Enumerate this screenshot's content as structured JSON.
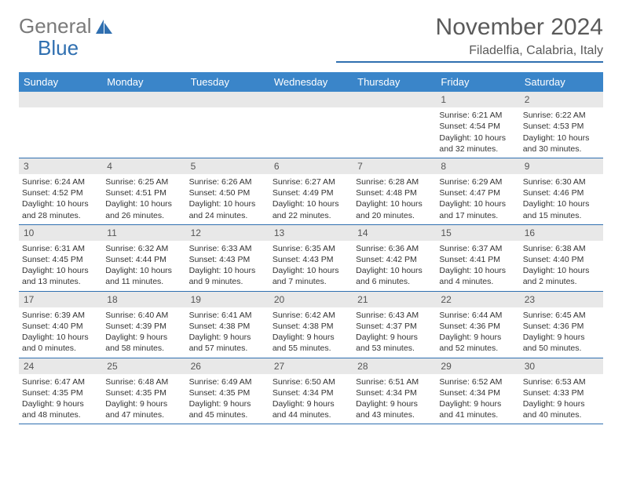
{
  "brand": {
    "word1": "General",
    "word2": "Blue"
  },
  "title": "November 2024",
  "location": "Filadelfia, Calabria, Italy",
  "colors": {
    "header_bg": "#3a85c9",
    "rule": "#2f6fb0",
    "daynum_bg": "#e8e8e8",
    "text": "#333333",
    "muted": "#5a5a5a"
  },
  "font": {
    "family": "Arial",
    "body_size_pt": 8,
    "title_size_pt": 22,
    "location_size_pt": 12,
    "header_size_pt": 10
  },
  "layout": {
    "cols": 7,
    "rows": 5,
    "leading_blanks": 5
  },
  "day_names": [
    "Sunday",
    "Monday",
    "Tuesday",
    "Wednesday",
    "Thursday",
    "Friday",
    "Saturday"
  ],
  "days": [
    {
      "n": 1,
      "sunrise": "6:21 AM",
      "sunset": "4:54 PM",
      "daylight": "10 hours and 32 minutes."
    },
    {
      "n": 2,
      "sunrise": "6:22 AM",
      "sunset": "4:53 PM",
      "daylight": "10 hours and 30 minutes."
    },
    {
      "n": 3,
      "sunrise": "6:24 AM",
      "sunset": "4:52 PM",
      "daylight": "10 hours and 28 minutes."
    },
    {
      "n": 4,
      "sunrise": "6:25 AM",
      "sunset": "4:51 PM",
      "daylight": "10 hours and 26 minutes."
    },
    {
      "n": 5,
      "sunrise": "6:26 AM",
      "sunset": "4:50 PM",
      "daylight": "10 hours and 24 minutes."
    },
    {
      "n": 6,
      "sunrise": "6:27 AM",
      "sunset": "4:49 PM",
      "daylight": "10 hours and 22 minutes."
    },
    {
      "n": 7,
      "sunrise": "6:28 AM",
      "sunset": "4:48 PM",
      "daylight": "10 hours and 20 minutes."
    },
    {
      "n": 8,
      "sunrise": "6:29 AM",
      "sunset": "4:47 PM",
      "daylight": "10 hours and 17 minutes."
    },
    {
      "n": 9,
      "sunrise": "6:30 AM",
      "sunset": "4:46 PM",
      "daylight": "10 hours and 15 minutes."
    },
    {
      "n": 10,
      "sunrise": "6:31 AM",
      "sunset": "4:45 PM",
      "daylight": "10 hours and 13 minutes."
    },
    {
      "n": 11,
      "sunrise": "6:32 AM",
      "sunset": "4:44 PM",
      "daylight": "10 hours and 11 minutes."
    },
    {
      "n": 12,
      "sunrise": "6:33 AM",
      "sunset": "4:43 PM",
      "daylight": "10 hours and 9 minutes."
    },
    {
      "n": 13,
      "sunrise": "6:35 AM",
      "sunset": "4:43 PM",
      "daylight": "10 hours and 7 minutes."
    },
    {
      "n": 14,
      "sunrise": "6:36 AM",
      "sunset": "4:42 PM",
      "daylight": "10 hours and 6 minutes."
    },
    {
      "n": 15,
      "sunrise": "6:37 AM",
      "sunset": "4:41 PM",
      "daylight": "10 hours and 4 minutes."
    },
    {
      "n": 16,
      "sunrise": "6:38 AM",
      "sunset": "4:40 PM",
      "daylight": "10 hours and 2 minutes."
    },
    {
      "n": 17,
      "sunrise": "6:39 AM",
      "sunset": "4:40 PM",
      "daylight": "10 hours and 0 minutes."
    },
    {
      "n": 18,
      "sunrise": "6:40 AM",
      "sunset": "4:39 PM",
      "daylight": "9 hours and 58 minutes."
    },
    {
      "n": 19,
      "sunrise": "6:41 AM",
      "sunset": "4:38 PM",
      "daylight": "9 hours and 57 minutes."
    },
    {
      "n": 20,
      "sunrise": "6:42 AM",
      "sunset": "4:38 PM",
      "daylight": "9 hours and 55 minutes."
    },
    {
      "n": 21,
      "sunrise": "6:43 AM",
      "sunset": "4:37 PM",
      "daylight": "9 hours and 53 minutes."
    },
    {
      "n": 22,
      "sunrise": "6:44 AM",
      "sunset": "4:36 PM",
      "daylight": "9 hours and 52 minutes."
    },
    {
      "n": 23,
      "sunrise": "6:45 AM",
      "sunset": "4:36 PM",
      "daylight": "9 hours and 50 minutes."
    },
    {
      "n": 24,
      "sunrise": "6:47 AM",
      "sunset": "4:35 PM",
      "daylight": "9 hours and 48 minutes."
    },
    {
      "n": 25,
      "sunrise": "6:48 AM",
      "sunset": "4:35 PM",
      "daylight": "9 hours and 47 minutes."
    },
    {
      "n": 26,
      "sunrise": "6:49 AM",
      "sunset": "4:35 PM",
      "daylight": "9 hours and 45 minutes."
    },
    {
      "n": 27,
      "sunrise": "6:50 AM",
      "sunset": "4:34 PM",
      "daylight": "9 hours and 44 minutes."
    },
    {
      "n": 28,
      "sunrise": "6:51 AM",
      "sunset": "4:34 PM",
      "daylight": "9 hours and 43 minutes."
    },
    {
      "n": 29,
      "sunrise": "6:52 AM",
      "sunset": "4:34 PM",
      "daylight": "9 hours and 41 minutes."
    },
    {
      "n": 30,
      "sunrise": "6:53 AM",
      "sunset": "4:33 PM",
      "daylight": "9 hours and 40 minutes."
    }
  ],
  "labels": {
    "sunrise": "Sunrise: ",
    "sunset": "Sunset: ",
    "daylight": "Daylight: "
  }
}
